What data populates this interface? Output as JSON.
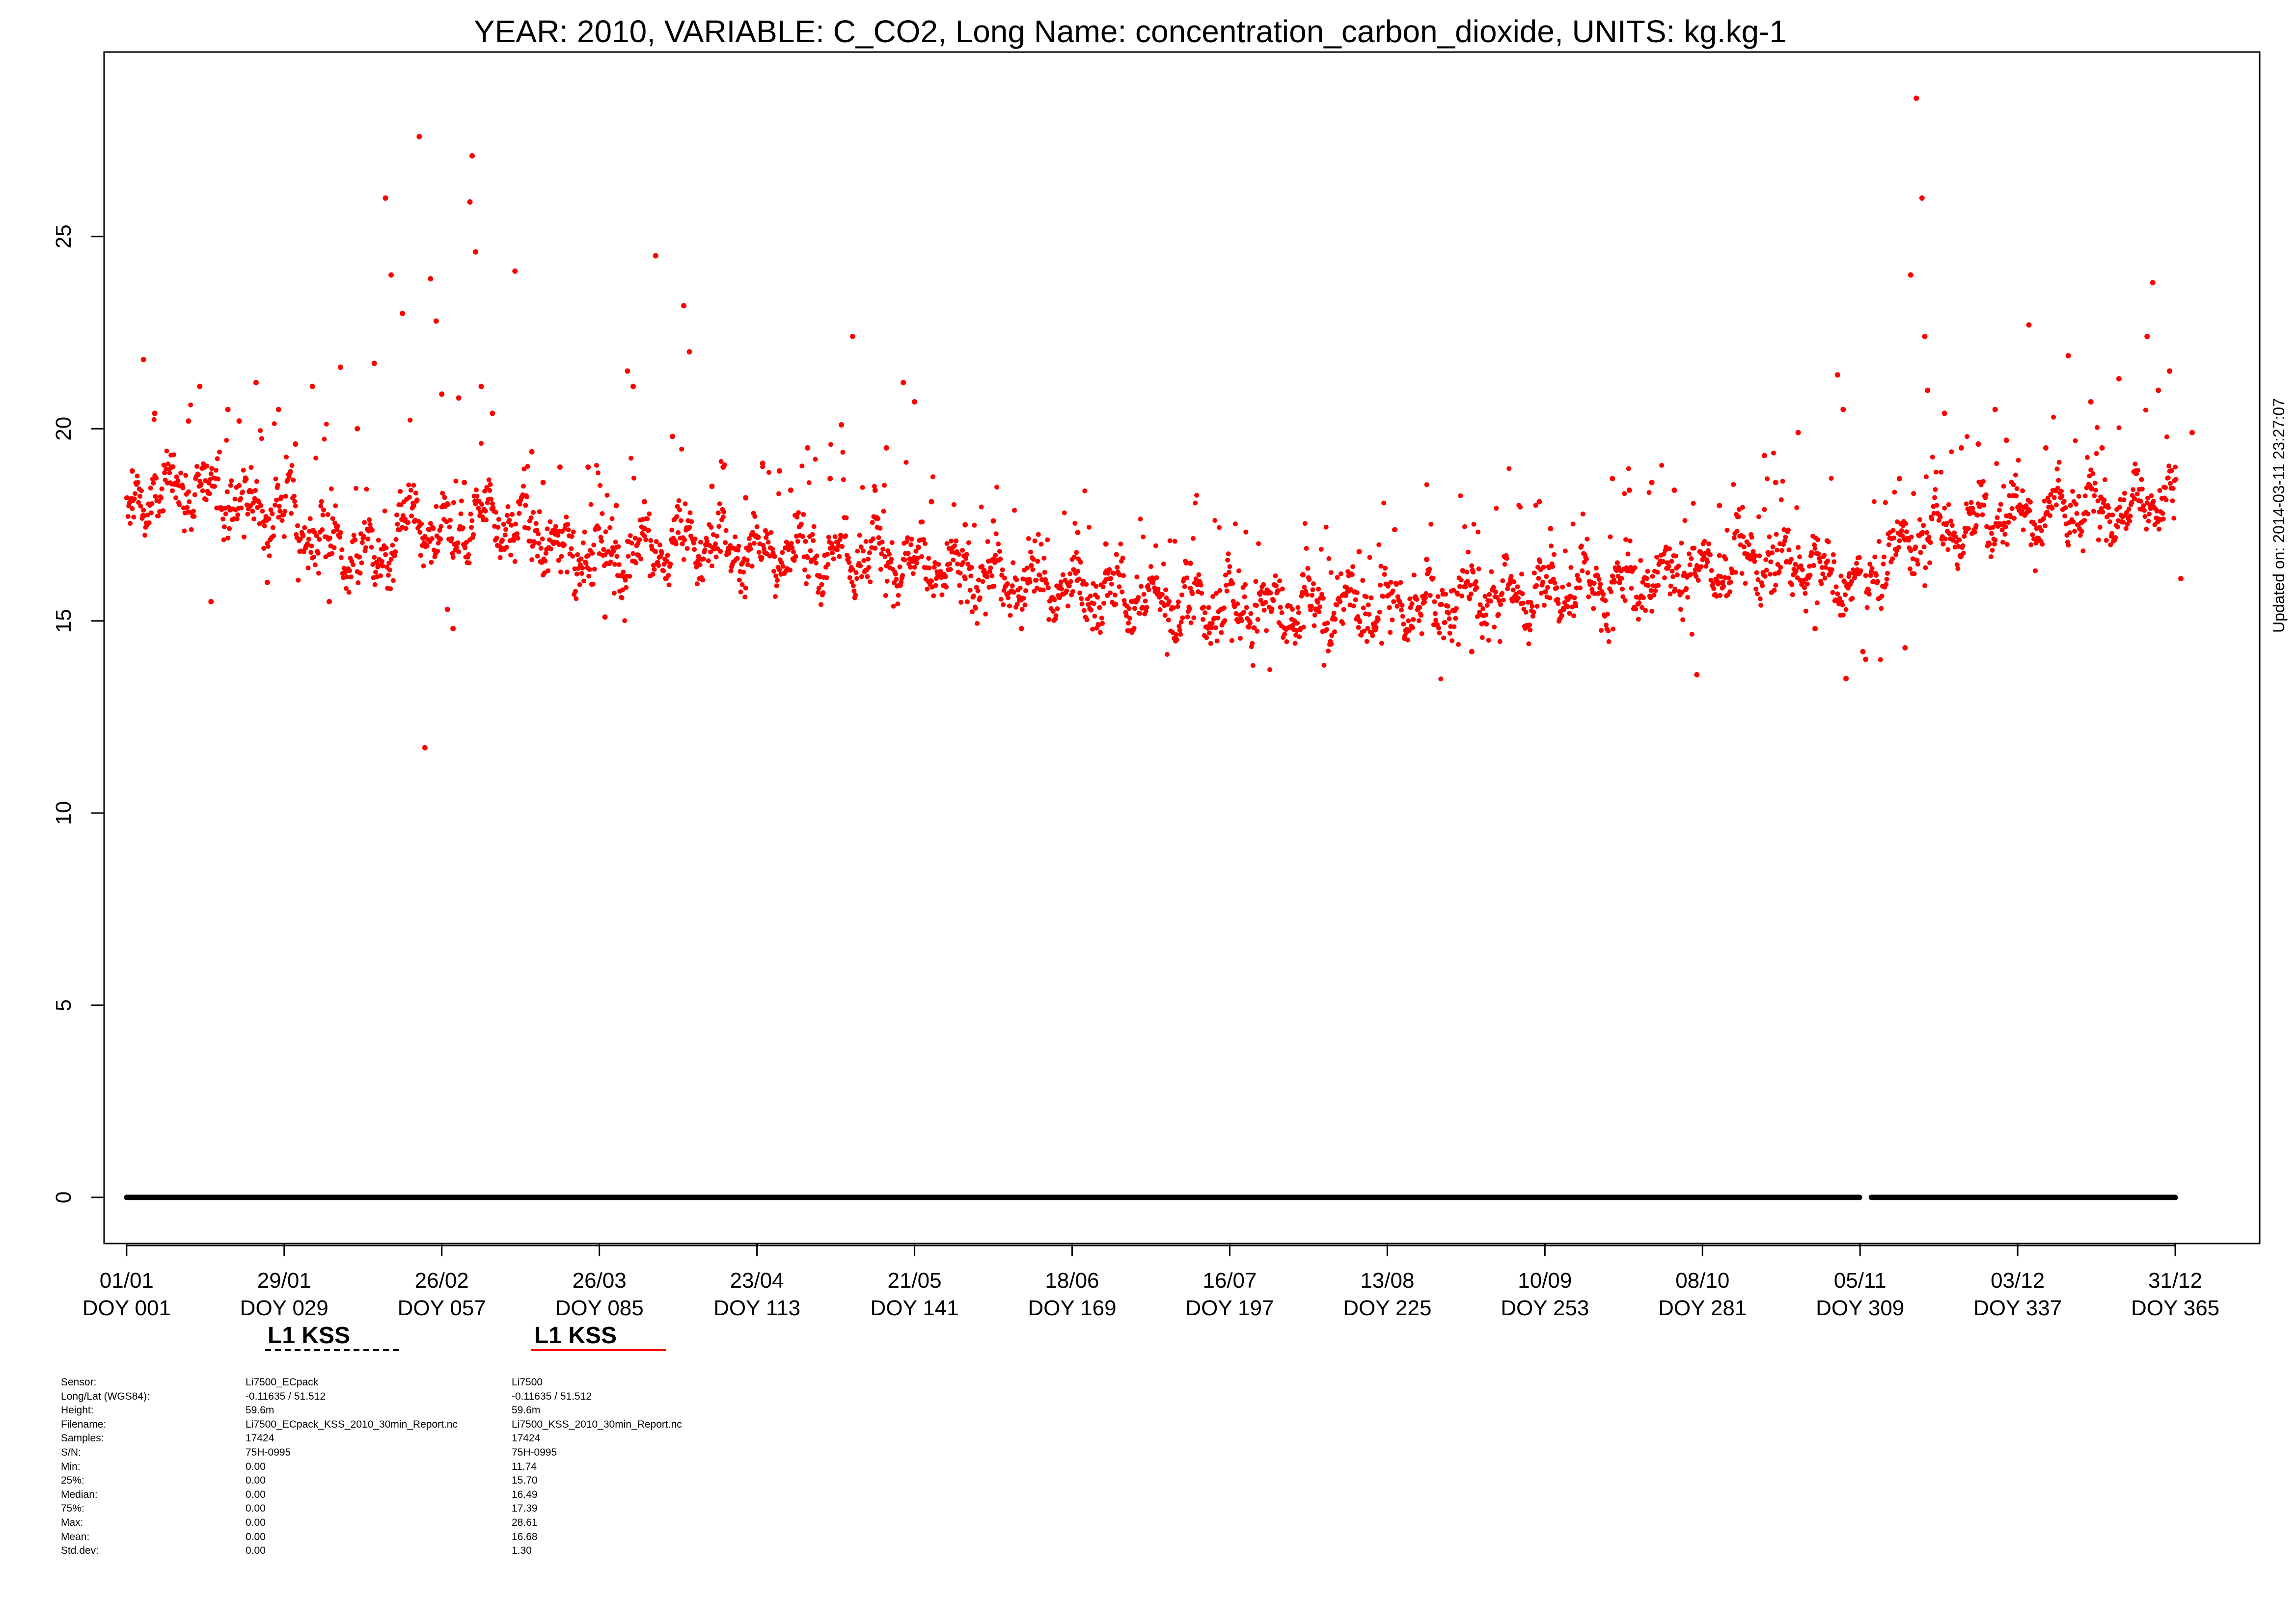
{
  "chart_data": {
    "type": "scatter",
    "title": "YEAR: 2010, VARIABLE: C_CO2, Long Name: concentration_carbon_dioxide, UNITS: kg.kg-1",
    "ylim": [
      -1.2,
      29.8
    ],
    "xlim": [
      -3,
      380
    ],
    "yticks": [
      0,
      5,
      10,
      15,
      20,
      25
    ],
    "ytick_labels": [
      "0",
      "5",
      "10",
      "15",
      "20",
      "25"
    ],
    "xticks": [
      {
        "doy": 1,
        "date": "01/01",
        "doy_label": "DOY 001"
      },
      {
        "doy": 29,
        "date": "29/01",
        "doy_label": "DOY 029"
      },
      {
        "doy": 57,
        "date": "26/02",
        "doy_label": "DOY 057"
      },
      {
        "doy": 85,
        "date": "26/03",
        "doy_label": "DOY 085"
      },
      {
        "doy": 113,
        "date": "23/04",
        "doy_label": "DOY 113"
      },
      {
        "doy": 141,
        "date": "21/05",
        "doy_label": "DOY 141"
      },
      {
        "doy": 169,
        "date": "18/06",
        "doy_label": "DOY 169"
      },
      {
        "doy": 197,
        "date": "16/07",
        "doy_label": "DOY 197"
      },
      {
        "doy": 225,
        "date": "13/08",
        "doy_label": "DOY 225"
      },
      {
        "doy": 253,
        "date": "10/09",
        "doy_label": "DOY 253"
      },
      {
        "doy": 281,
        "date": "08/10",
        "doy_label": "DOY 281"
      },
      {
        "doy": 309,
        "date": "05/11",
        "doy_label": "DOY 309"
      },
      {
        "doy": 337,
        "date": "03/12",
        "doy_label": "DOY 337"
      },
      {
        "doy": 365,
        "date": "31/12",
        "doy_label": "DOY 365"
      }
    ],
    "grid": false,
    "updated_label": "Updated on: 2014-03-11 23:27:07",
    "series": [
      {
        "name": "L1 KSS",
        "sensor": "Li7500_ECpack",
        "color": "#000000",
        "line_style": "dashed",
        "constant_value": 0,
        "segments": [
          [
            1,
            308.9
          ],
          [
            311,
            365
          ]
        ]
      },
      {
        "name": "L1 KSS",
        "sensor": "Li7500",
        "color": "#ff0000",
        "line_style": "solid",
        "baseline": [
          [
            1,
            17.6
          ],
          [
            5,
            18.3
          ],
          [
            10,
            18.5
          ],
          [
            15,
            18.4
          ],
          [
            20,
            18.1
          ],
          [
            25,
            18.0
          ],
          [
            29,
            17.9
          ],
          [
            32,
            17.5
          ],
          [
            38,
            17.0
          ],
          [
            45,
            16.6
          ],
          [
            48,
            16.9
          ],
          [
            52,
            17.8
          ],
          [
            56,
            17.1
          ],
          [
            58,
            17.0
          ],
          [
            62,
            17.7
          ],
          [
            66,
            17.8
          ],
          [
            72,
            17.3
          ],
          [
            78,
            16.9
          ],
          [
            85,
            16.7
          ],
          [
            92,
            16.8
          ],
          [
            100,
            17.0
          ],
          [
            110,
            16.9
          ],
          [
            120,
            16.7
          ],
          [
            130,
            16.7
          ],
          [
            141,
            16.7
          ],
          [
            150,
            16.2
          ],
          [
            160,
            16.0
          ],
          [
            169,
            15.8
          ],
          [
            180,
            15.6
          ],
          [
            190,
            15.4
          ],
          [
            197,
            15.3
          ],
          [
            210,
            15.3
          ],
          [
            225,
            15.4
          ],
          [
            235,
            15.5
          ],
          [
            245,
            15.7
          ],
          [
            253,
            15.8
          ],
          [
            262,
            15.9
          ],
          [
            270,
            16.0
          ],
          [
            281,
            16.3
          ],
          [
            290,
            16.6
          ],
          [
            300,
            16.5
          ],
          [
            305,
            16.1
          ],
          [
            309,
            15.9
          ],
          [
            312,
            16.3
          ],
          [
            317,
            17.0
          ],
          [
            322,
            17.4
          ],
          [
            330,
            17.6
          ],
          [
            337,
            17.8
          ],
          [
            345,
            17.9
          ],
          [
            355,
            18.0
          ],
          [
            365,
            18.3
          ]
        ],
        "spikes": [
          [
            2,
            18.9
          ],
          [
            4,
            21.8
          ],
          [
            6,
            20.4
          ],
          [
            9,
            19.0
          ],
          [
            12,
            20.2
          ],
          [
            14,
            21.1
          ],
          [
            16,
            15.5
          ],
          [
            19,
            20.5
          ],
          [
            21,
            20.2
          ],
          [
            24,
            21.2
          ],
          [
            26,
            16.0
          ],
          [
            28,
            20.5
          ],
          [
            31,
            19.6
          ],
          [
            34,
            21.1
          ],
          [
            37,
            15.5
          ],
          [
            39,
            21.6
          ],
          [
            42,
            20.0
          ],
          [
            45,
            21.7
          ],
          [
            47,
            26.0
          ],
          [
            48,
            24.0
          ],
          [
            50,
            23.0
          ],
          [
            52,
            18.0
          ],
          [
            53,
            27.6
          ],
          [
            54,
            11.7
          ],
          [
            55,
            23.9
          ],
          [
            56,
            22.8
          ],
          [
            57,
            20.9
          ],
          [
            58,
            15.3
          ],
          [
            59,
            14.8
          ],
          [
            60,
            20.8
          ],
          [
            61,
            18.6
          ],
          [
            62,
            25.9
          ],
          [
            62.4,
            27.1
          ],
          [
            63,
            24.6
          ],
          [
            64,
            21.1
          ],
          [
            66,
            20.4
          ],
          [
            70,
            24.1
          ],
          [
            73,
            19.4
          ],
          [
            75,
            18.6
          ],
          [
            78,
            19.0
          ],
          [
            83,
            19.0
          ],
          [
            86,
            15.1
          ],
          [
            88,
            18.0
          ],
          [
            90,
            21.5
          ],
          [
            91,
            21.1
          ],
          [
            93,
            18.1
          ],
          [
            95,
            24.5
          ],
          [
            98,
            19.8
          ],
          [
            100,
            23.2
          ],
          [
            101,
            22.0
          ],
          [
            105,
            18.5
          ],
          [
            107,
            19.0
          ],
          [
            111,
            18.2
          ],
          [
            114,
            19.1
          ],
          [
            117,
            18.9
          ],
          [
            119,
            18.4
          ],
          [
            122,
            19.5
          ],
          [
            126,
            18.7
          ],
          [
            128,
            20.1
          ],
          [
            130,
            22.4
          ],
          [
            134,
            18.4
          ],
          [
            136,
            19.5
          ],
          [
            139,
            21.2
          ],
          [
            141,
            20.7
          ],
          [
            144,
            18.1
          ],
          [
            150,
            17.5
          ],
          [
            155,
            17.6
          ],
          [
            160,
            14.8
          ],
          [
            170,
            17.3
          ],
          [
            175,
            17.0
          ],
          [
            190,
            16.5
          ],
          [
            210,
            16.2
          ],
          [
            215,
            14.4
          ],
          [
            220,
            16.8
          ],
          [
            232,
            16.6
          ],
          [
            240,
            14.2
          ],
          [
            252,
            18.1
          ],
          [
            254,
            17.4
          ],
          [
            265,
            18.7
          ],
          [
            268,
            18.4
          ],
          [
            272,
            18.6
          ],
          [
            276,
            18.4
          ],
          [
            280,
            13.6
          ],
          [
            284,
            18.0
          ],
          [
            292,
            19.3
          ],
          [
            294,
            18.6
          ],
          [
            298,
            19.9
          ],
          [
            301,
            14.8
          ],
          [
            305,
            21.4
          ],
          [
            306,
            20.5
          ],
          [
            306.5,
            13.5
          ],
          [
            309.5,
            14.2
          ],
          [
            310,
            14.0
          ],
          [
            316,
            18.7
          ],
          [
            317,
            14.3
          ],
          [
            318,
            24.0
          ],
          [
            319,
            28.6
          ],
          [
            320,
            26.0
          ],
          [
            320.5,
            22.4
          ],
          [
            321,
            21.0
          ],
          [
            324,
            20.4
          ],
          [
            327,
            19.5
          ],
          [
            330,
            19.6
          ],
          [
            333,
            20.5
          ],
          [
            335,
            19.7
          ],
          [
            339,
            22.7
          ],
          [
            342,
            19.5
          ],
          [
            346,
            21.9
          ],
          [
            350,
            20.7
          ],
          [
            352,
            19.5
          ],
          [
            355,
            21.3
          ],
          [
            358,
            18.9
          ],
          [
            360,
            22.4
          ],
          [
            361,
            23.8
          ],
          [
            362,
            21.0
          ],
          [
            364,
            21.5
          ],
          [
            366,
            16.1
          ],
          [
            368,
            19.9
          ]
        ]
      }
    ]
  },
  "legend": [
    {
      "label": "L1 KSS",
      "color": "#000000",
      "style": "dashed"
    },
    {
      "label": "L1 KSS",
      "color": "#ff0000",
      "style": "solid"
    }
  ],
  "metadata": {
    "labels": [
      "Sensor:",
      "Long/Lat (WGS84):",
      "Height:",
      "Filename:",
      "Samples:",
      "S/N:",
      "Min:",
      "25%:",
      "Median:",
      "75%:",
      "Max:",
      "Mean:",
      "Std.dev:"
    ],
    "columns": [
      [
        "Li7500_ECpack",
        "-0.11635 / 51.512",
        "59.6m",
        "Li7500_ECpack_KSS_2010_30min_Report.nc",
        "17424",
        "75H-0995",
        "0.00",
        "0.00",
        "0.00",
        "0.00",
        "0.00",
        "0.00",
        "0.00"
      ],
      [
        "Li7500",
        "-0.11635 / 51.512",
        "59.6m",
        "Li7500_KSS_2010_30min_Report.nc",
        "17424",
        "75H-0995",
        "11.74",
        "15.70",
        "16.49",
        "17.39",
        "28.61",
        "16.68",
        "1.30"
      ]
    ]
  }
}
